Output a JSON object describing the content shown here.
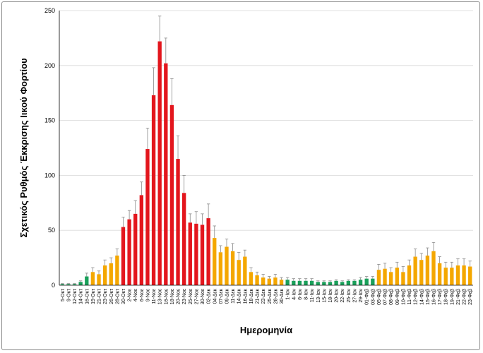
{
  "chart_data": {
    "type": "bar",
    "title": "",
    "xlabel": "Ημερομηνία",
    "ylabel": "Σχετικός Ρυθμός Έκκρισης Ιικού Φορτίου",
    "ylim": [
      0,
      250
    ],
    "yticks": [
      0,
      50,
      100,
      150,
      200,
      250
    ],
    "grid": true,
    "legend": "none",
    "colors": {
      "green": "#1aa05a",
      "orange": "#f4a700",
      "red": "#e3161d",
      "error": "#8a8a8a",
      "grid": "#d9d9d9"
    },
    "categories": [
      "5-Οκτ",
      "9-Οκτ",
      "12-Οκτ",
      "14-Οκτ",
      "16-Οκτ",
      "19-Οκτ",
      "21-Οκτ",
      "23-Οκτ",
      "26-Οκτ",
      "28-Οκτ",
      "30-Οκτ",
      "2-Νοε",
      "4-Νοε",
      "6-Νοε",
      "9-Νοε",
      "11-Νοε",
      "13-Νοε",
      "16-Νοε",
      "18-Νοε",
      "20-Νοε",
      "23-Νοε",
      "25-Νοε",
      "27-Νοε",
      "30-Νοε",
      "02-Δεκ",
      "04-Δεκ",
      "07-Δεκ",
      "09-Δεκ",
      "11-Δεκ",
      "14-Δεκ",
      "16-Δεκ",
      "18-Δεκ",
      "21-Δεκ",
      "23-Δεκ",
      "25-Δεκ",
      "28-Δεκ",
      "30-Δεκ",
      "1-Ιαν",
      "4-Ιαν",
      "6-Ιαν",
      "8-Ιαν",
      "11-Ιαν",
      "13-Ιαν",
      "15-Ιαν",
      "18-Ιαν",
      "20-Ιαν",
      "22-Ιαν",
      "25-Ιαν",
      "27-Ιαν",
      "29-Ιαν",
      "01-Φεβ",
      "03-Φεβ",
      "05-Φεβ",
      "07-Φεβ",
      "08-Φεβ",
      "09-Φεβ",
      "10-Φεβ",
      "11-Φεβ",
      "12-Φεβ",
      "14-Φεβ",
      "15-Φεβ",
      "16-Φεβ",
      "17-Φεβ",
      "18-Φεβ",
      "19-Φεβ",
      "21-Φεβ",
      "22-Φεβ",
      "23-Φεβ"
    ],
    "values": [
      1,
      1,
      1,
      3,
      8,
      12,
      10,
      18,
      20,
      27,
      53,
      60,
      65,
      82,
      124,
      173,
      222,
      202,
      164,
      115,
      84,
      57,
      56,
      55,
      61,
      43,
      30,
      35,
      31,
      23,
      26,
      12,
      9,
      7,
      6,
      7,
      5,
      5,
      4,
      4,
      4,
      4,
      3,
      3,
      3,
      4,
      3,
      4,
      4,
      5,
      6,
      6,
      14,
      15,
      12,
      16,
      12,
      18,
      26,
      23,
      27,
      31,
      20,
      16,
      16,
      18,
      18,
      17
    ],
    "errors": [
      0.5,
      0.5,
      0.5,
      1,
      3,
      4,
      3,
      5,
      5,
      6,
      9,
      8,
      12,
      12,
      19,
      25,
      23,
      23,
      24,
      21,
      16,
      8,
      11,
      10,
      13,
      11,
      6,
      7,
      7,
      7,
      6,
      4,
      3,
      3,
      2,
      3,
      2,
      2,
      2,
      2,
      2,
      2,
      1,
      1,
      1,
      1,
      1,
      1,
      1,
      2,
      2,
      2,
      5,
      5,
      4,
      5,
      5,
      5,
      7,
      6,
      7,
      8,
      6,
      5,
      5,
      6,
      6,
      5
    ],
    "bar_colors": [
      "green",
      "green",
      "green",
      "green",
      "green",
      "orange",
      "orange",
      "orange",
      "orange",
      "orange",
      "red",
      "red",
      "red",
      "red",
      "red",
      "red",
      "red",
      "red",
      "red",
      "red",
      "red",
      "red",
      "red",
      "red",
      "red",
      "orange",
      "orange",
      "orange",
      "orange",
      "orange",
      "orange",
      "orange",
      "orange",
      "orange",
      "orange",
      "orange",
      "orange",
      "green",
      "green",
      "green",
      "green",
      "green",
      "green",
      "green",
      "green",
      "green",
      "green",
      "green",
      "green",
      "green",
      "green",
      "green",
      "orange",
      "orange",
      "orange",
      "orange",
      "orange",
      "orange",
      "orange",
      "orange",
      "orange",
      "orange",
      "orange",
      "orange",
      "orange",
      "orange",
      "orange",
      "orange"
    ]
  }
}
